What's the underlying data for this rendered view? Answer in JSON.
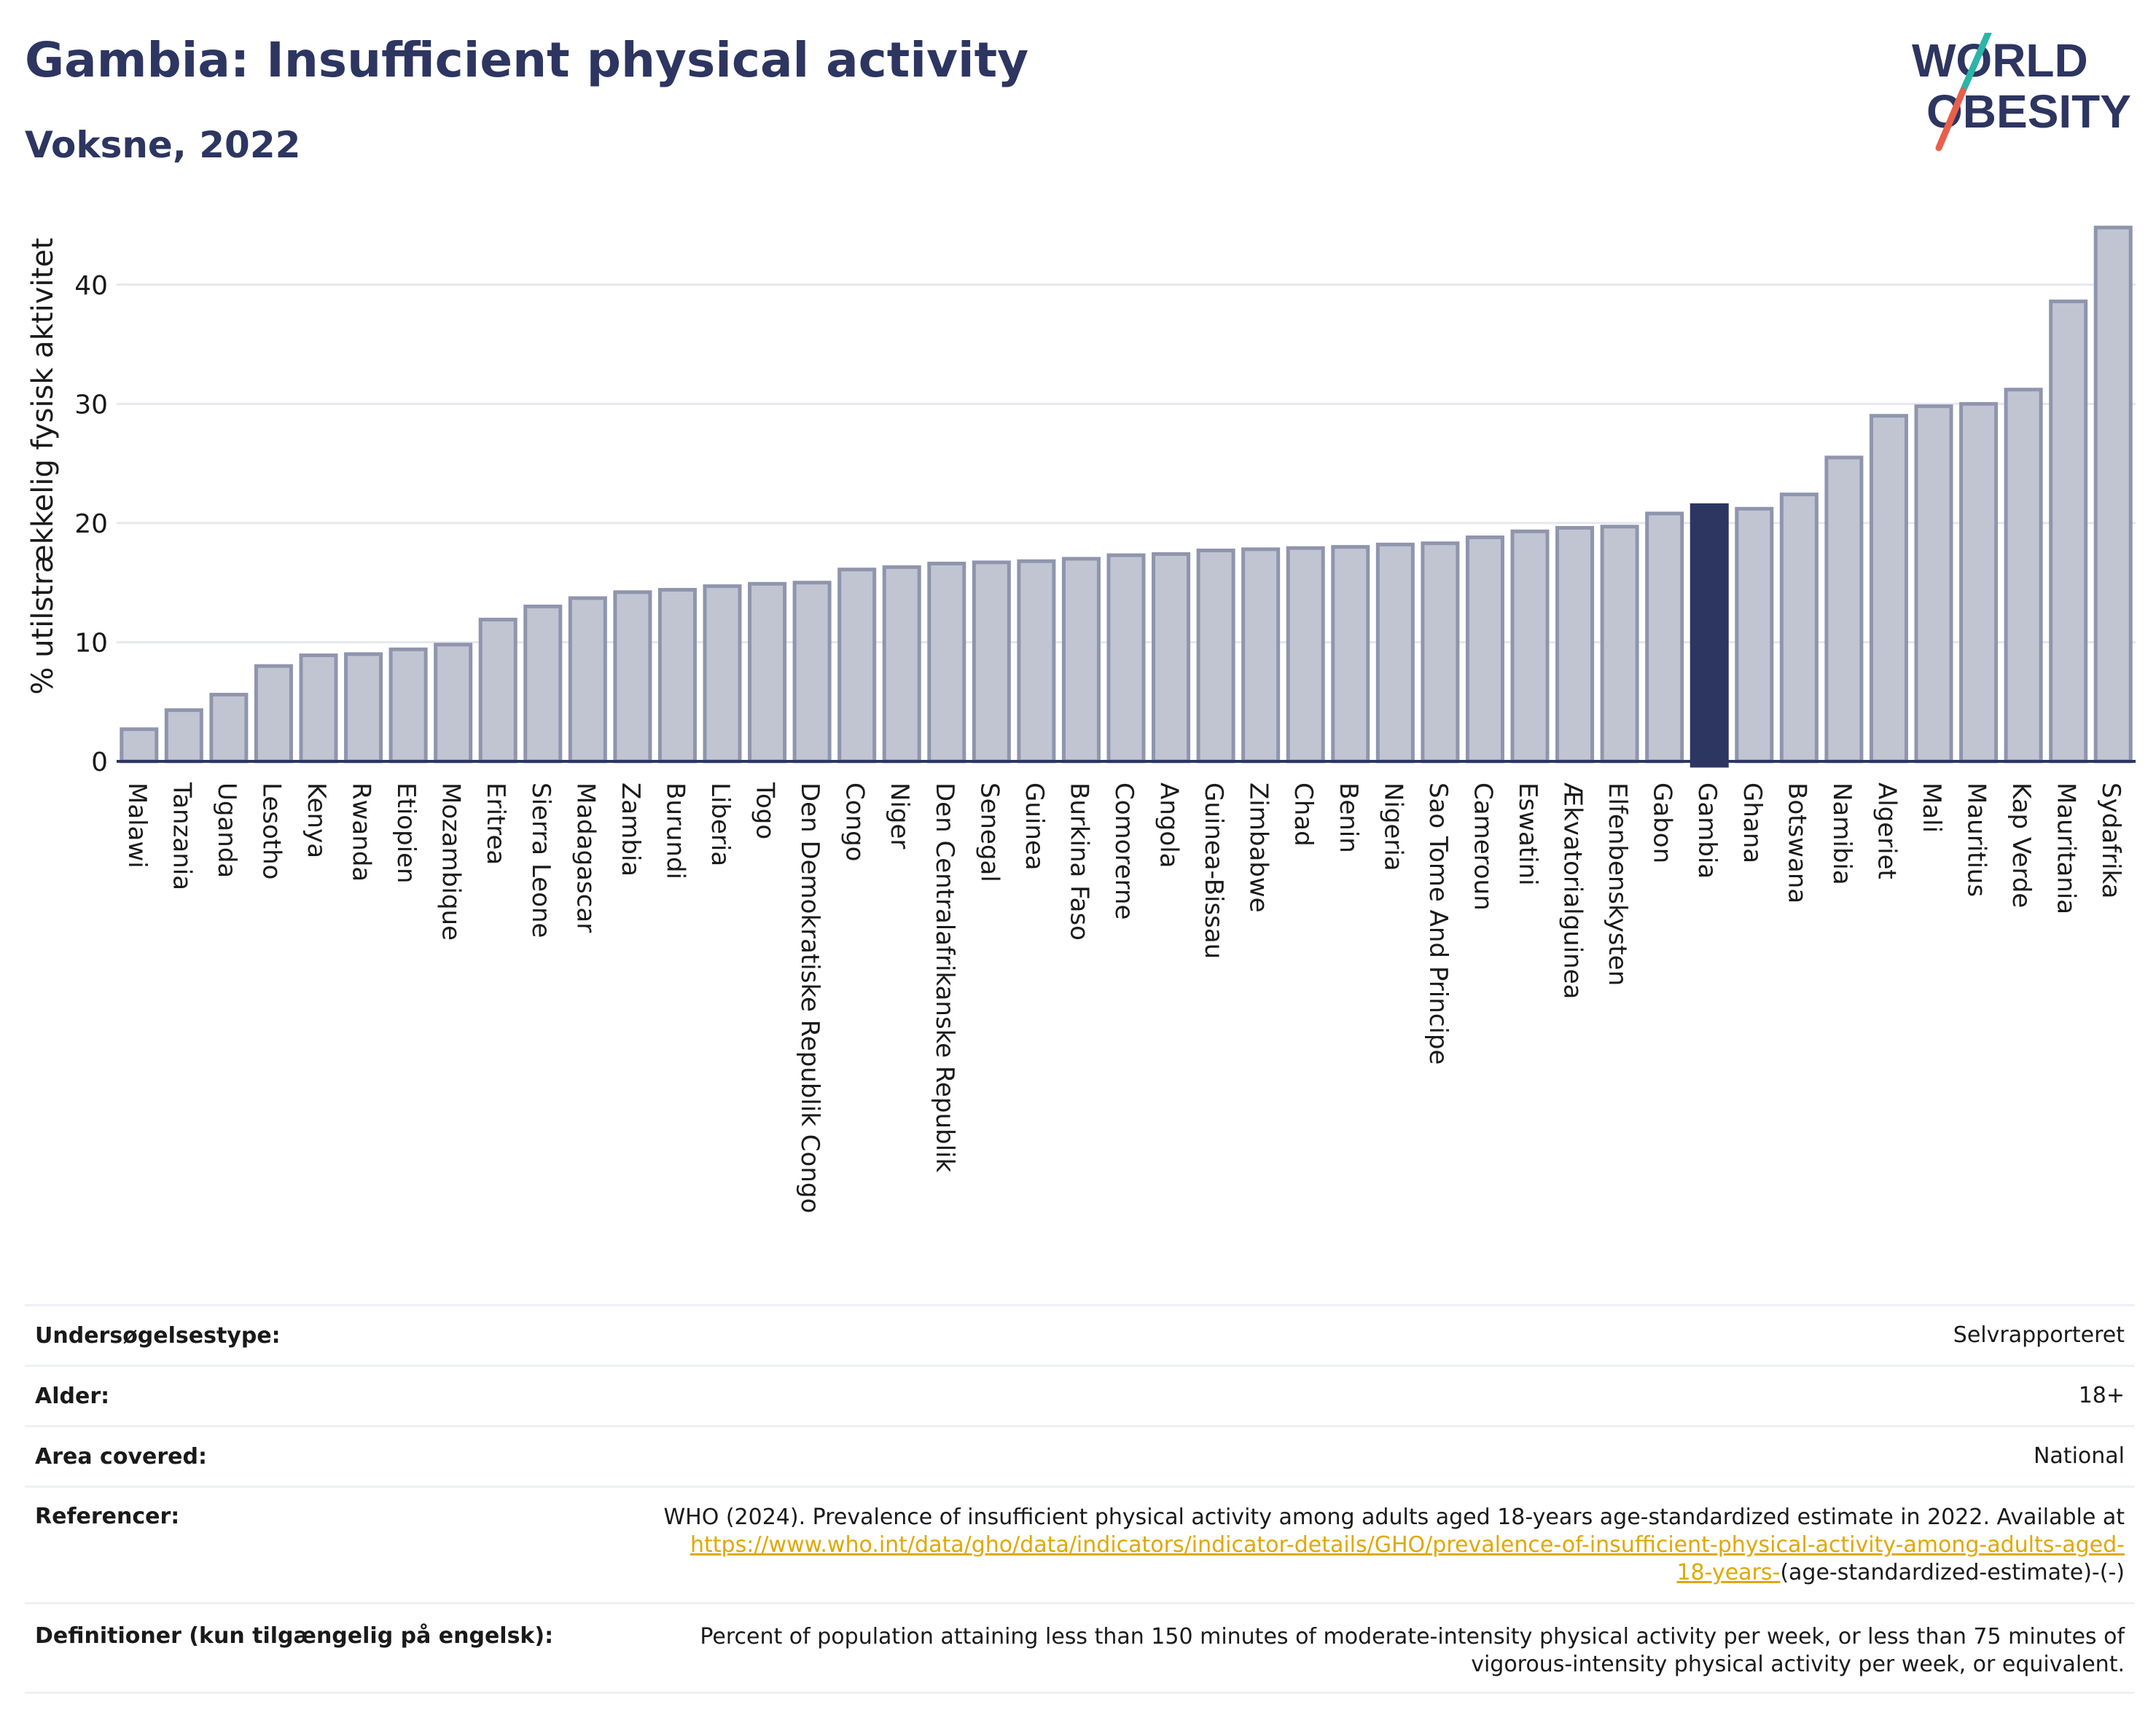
{
  "header": {
    "title": "Gambia: Insufficient physical activity",
    "subtitle": "Voksne, 2022"
  },
  "logo": {
    "line1": "WORLD",
    "line2": "OBESITY"
  },
  "chart_data": {
    "type": "bar",
    "ylabel": "% utilstrækkelig fysisk aktivitet",
    "ylim": [
      0,
      45
    ],
    "yticks": [
      0,
      10,
      20,
      30,
      40
    ],
    "grid": true,
    "highlight": "Gambia",
    "colors": {
      "bar": "#c1c5d2",
      "bar_edge": "#8f95ad",
      "highlight": "#2d3561"
    },
    "categories": [
      "Malawi",
      "Tanzania",
      "Uganda",
      "Lesotho",
      "Kenya",
      "Rwanda",
      "Etiopien",
      "Mozambique",
      "Eritrea",
      "Sierra Leone",
      "Madagascar",
      "Zambia",
      "Burundi",
      "Liberia",
      "Togo",
      "Den Demokratiske Republik Congo",
      "Congo",
      "Niger",
      "Den Centralafrikanske Republik",
      "Senegal",
      "Guinea",
      "Burkina Faso",
      "Comorerne",
      "Angola",
      "Guinea-Bissau",
      "Zimbabwe",
      "Chad",
      "Benin",
      "Nigeria",
      "Sao Tome And Principe",
      "Cameroun",
      "Eswatini",
      "Ækvatorialguinea",
      "Elfenbenskysten",
      "Gabon",
      "Gambia",
      "Ghana",
      "Botswana",
      "Namibia",
      "Algeriet",
      "Mali",
      "Mauritius",
      "Kap Verde",
      "Mauritania",
      "Sydafrika"
    ],
    "values": [
      2.7,
      4.3,
      5.6,
      8.0,
      8.9,
      9.0,
      9.4,
      9.8,
      11.9,
      13.0,
      13.7,
      14.2,
      14.4,
      14.7,
      14.9,
      15.0,
      16.1,
      16.3,
      16.6,
      16.7,
      16.8,
      17.0,
      17.3,
      17.4,
      17.7,
      17.8,
      17.9,
      18.0,
      18.2,
      18.3,
      18.8,
      19.3,
      19.6,
      19.7,
      20.8,
      21.5,
      21.2,
      22.4,
      25.5,
      29.0,
      29.8,
      30.0,
      31.2,
      38.6,
      44.8
    ]
  },
  "info": {
    "rows": [
      {
        "key": "Undersøgelsestype:",
        "value": "Selvrapporteret"
      },
      {
        "key": "Alder:",
        "value": "18+"
      },
      {
        "key": "Area covered:",
        "value": "National"
      }
    ],
    "references": {
      "key": "Referencer:",
      "text": "WHO (2024). Prevalence of insufficient physical activity among adults aged 18-years age-standardized estimate in 2022. Available at",
      "link_line1": "https://www.who.int/data/gho/data/indicators/indicator-details/GHO/prevalence-of-insufficient-physical-activity-among-adults-aged-",
      "link_line2": "18-years-",
      "tail": "(age-standardized-estimate)-(-)"
    },
    "definitions": {
      "key": "Definitioner (kun tilgængelig på engelsk):",
      "line1": "Percent of population attaining less than 150 minutes of moderate-intensity physical activity per week, or less than 75 minutes of",
      "line2": "vigorous-intensity physical activity per week, or equivalent."
    }
  }
}
